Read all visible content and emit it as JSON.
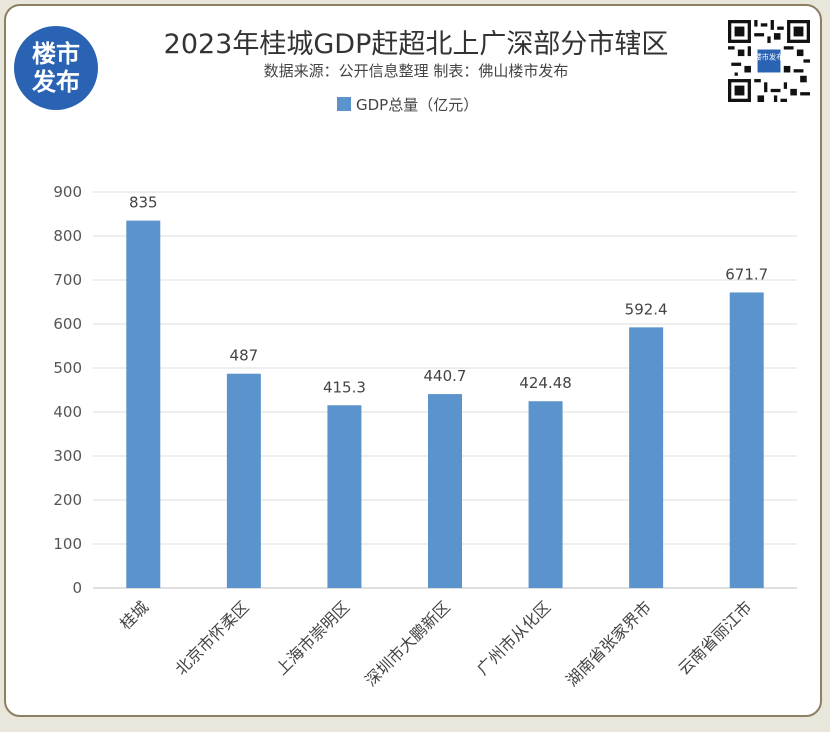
{
  "header": {
    "logo_line1": "楼市",
    "logo_line2": "发布",
    "title": "2023年桂城GDP赶超北上广深部分市辖区",
    "subtitle": "数据来源：公开信息整理 制表：佛山楼市发布",
    "qr_label": "楼市发布"
  },
  "chart_data": {
    "type": "bar",
    "title": "2023年桂城GDP赶超北上广深部分市辖区",
    "subtitle": "数据来源：公开信息整理 制表：佛山楼市发布",
    "categories": [
      "桂城",
      "北京市怀柔区",
      "上海市崇明区",
      "深圳市大鹏新区",
      "广州市从化区",
      "湖南省张家界市",
      "云南省丽江市"
    ],
    "series": [
      {
        "name": "GDP总量（亿元）",
        "values": [
          835,
          487,
          415.3,
          440.7,
          424.48,
          592.4,
          671.7
        ],
        "labels": [
          "835",
          "487",
          "415.3",
          "440.7",
          "424.48",
          "592.4",
          "671.7"
        ]
      }
    ],
    "ylim": [
      0,
      900
    ],
    "yticks": [
      "0",
      "100",
      "200",
      "300",
      "400",
      "500",
      "600",
      "700",
      "800",
      "900"
    ],
    "grid": true,
    "legend_position": "top",
    "bar_color": "#5b93cc"
  }
}
